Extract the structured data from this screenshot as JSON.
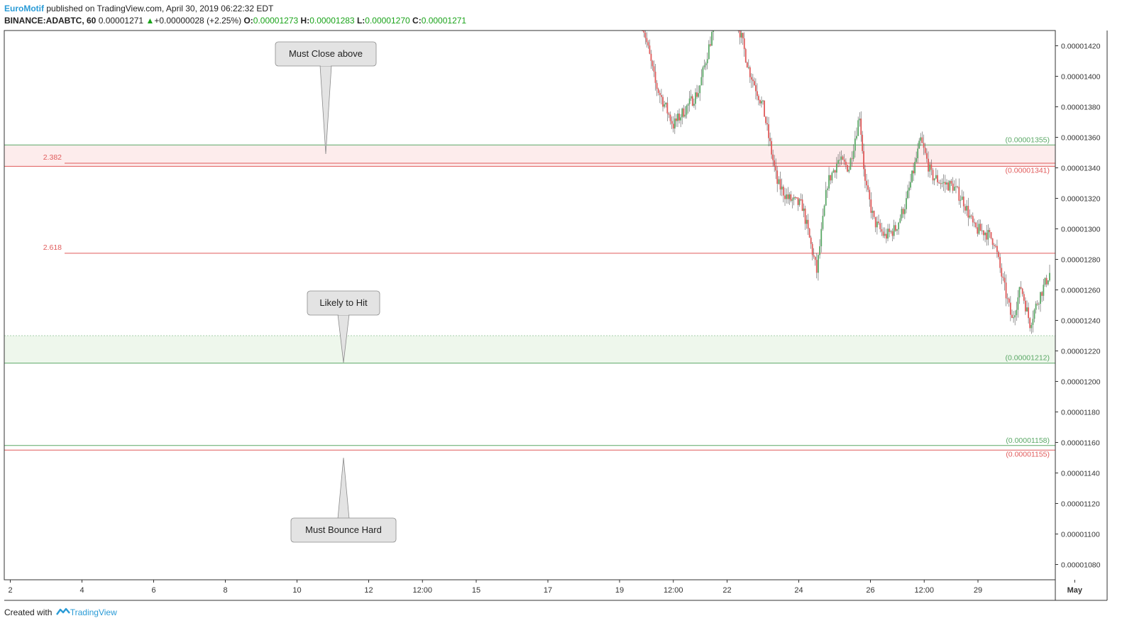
{
  "header": {
    "author": "EuroMotif",
    "published_text": "published on TradingView.com, April 30, 2019 06:22:32 EDT",
    "symbol_line": "BINANCE:ADABTC, 60",
    "last": "0.00001271",
    "up_arrow": "▲",
    "change": "+0.00000028 (+2.25%)",
    "o_label": "O:",
    "o_value": "0.00001273",
    "h_label": "H:",
    "h_value": "0.00001283",
    "l_label": "L:",
    "l_value": "0.00001270",
    "c_label": "C:",
    "c_value": "0.00001271"
  },
  "footer": {
    "created_with": "Created with",
    "brand": "TradingView",
    "logo_icon": "tradingview-logo-icon"
  },
  "colors": {
    "up": "#5aa866",
    "down": "#e05a5a",
    "fib": "#e05a5a",
    "support": "#5aa866",
    "resist_zone": "#fdecec",
    "support_zone": "#eef7ec",
    "callout_bg": "#e3e3e3"
  },
  "chart_data": {
    "type": "candlestick",
    "symbol": "BINANCE:ADABTC",
    "interval": "60",
    "ylim": [
      1.07e-05,
      1.43e-05
    ],
    "y_ticks": [
      "0.00001420",
      "0.00001400",
      "0.00001380",
      "0.00001360",
      "0.00001340",
      "0.00001320",
      "0.00001300",
      "0.00001280",
      "0.00001260",
      "0.00001240",
      "0.00001220",
      "0.00001200",
      "0.00001180",
      "0.00001160",
      "0.00001140",
      "0.00001120",
      "0.00001100",
      "0.00001080"
    ],
    "x_ticks": [
      "2",
      "4",
      "6",
      "8",
      "10",
      "12",
      "12:00",
      "15",
      "17",
      "19",
      "12:00",
      "22",
      "24",
      "26",
      "12:00",
      "29",
      "May"
    ],
    "horizontal_levels": [
      {
        "label": "(0.00001355)",
        "value": 1.355e-05,
        "color": "support"
      },
      {
        "label": "(0.00001341)",
        "value": 1.341e-05,
        "color": "fib"
      },
      {
        "label": "(0.00001212)",
        "value": 1.212e-05,
        "color": "support"
      },
      {
        "label": "(0.00001158)",
        "value": 1.158e-05,
        "color": "support"
      },
      {
        "label": "(0.00001155)",
        "value": 1.155e-05,
        "color": "fib"
      }
    ],
    "fib_levels": [
      {
        "label": "2.382",
        "value": 1.343e-05
      },
      {
        "label": "2.618",
        "value": 1.284e-05
      }
    ],
    "zones": [
      {
        "name": "resistance",
        "from": 1.341e-05,
        "to": 1.355e-05
      },
      {
        "name": "support",
        "from": 1.212e-05,
        "to": 1.23e-05
      }
    ],
    "callouts": [
      {
        "text": "Must Close above"
      },
      {
        "text": "Likely to Hit"
      },
      {
        "text": "Must Bounce Hard"
      }
    ],
    "path": [
      [
        19.6,
        1.44e-05
      ],
      [
        20.0,
        1.395e-05
      ],
      [
        20.5,
        1.368e-05
      ],
      [
        21.2,
        1.39e-05
      ],
      [
        21.7,
        1.44e-05
      ],
      [
        22.2,
        1.445e-05
      ],
      [
        22.6,
        1.405e-05
      ],
      [
        23.0,
        1.38e-05
      ],
      [
        23.4,
        1.33e-05
      ],
      [
        23.7,
        1.32e-05
      ],
      [
        24.1,
        1.315e-05
      ],
      [
        24.5,
        1.272e-05
      ],
      [
        24.8,
        1.33e-05
      ],
      [
        25.1,
        1.345e-05
      ],
      [
        25.4,
        1.34e-05
      ],
      [
        25.7,
        1.375e-05
      ],
      [
        25.85,
        1.33e-05
      ],
      [
        26.1,
        1.305e-05
      ],
      [
        26.4,
        1.295e-05
      ],
      [
        26.7,
        1.3e-05
      ],
      [
        27.0,
        1.318e-05
      ],
      [
        27.4,
        1.358e-05
      ],
      [
        27.7,
        1.335e-05
      ],
      [
        28.0,
        1.33e-05
      ],
      [
        28.3,
        1.328e-05
      ],
      [
        28.6,
        1.318e-05
      ],
      [
        28.9,
        1.3e-05
      ],
      [
        29.2,
        1.298e-05
      ],
      [
        29.45,
        1.292e-05
      ],
      [
        29.7,
        1.265e-05
      ],
      [
        29.95,
        1.24e-05
      ],
      [
        30.2,
        1.262e-05
      ],
      [
        30.45,
        1.238e-05
      ],
      [
        30.7,
        1.255e-05
      ],
      [
        31.0,
        1.271e-05
      ]
    ]
  }
}
